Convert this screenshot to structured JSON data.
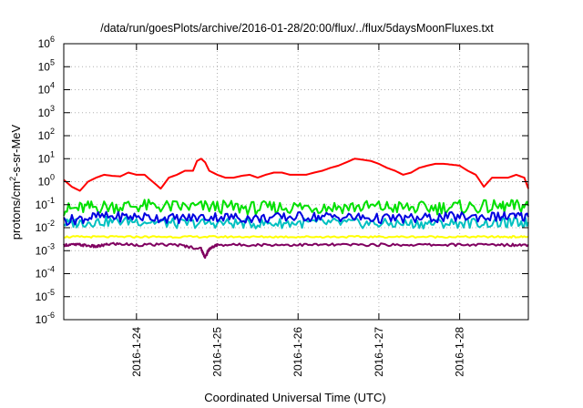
{
  "chart_data": {
    "type": "line",
    "title": "/data/run/goesPlots/archive/2016-01-28/20:00/flux/../flux/5daysMoonFluxes.txt",
    "xlabel": "Coordinated Universal Time (UTC)",
    "ylabel": "protons/cm²-s-sr-MeV",
    "ylabel_parts": {
      "pre": "protons/cm",
      "sup": "2",
      "post": "-s-sr-MeV"
    },
    "yscale": "log",
    "ylim": [
      1e-06,
      1000000.0
    ],
    "xlim_days": [
      23.1,
      28.85
    ],
    "x_ticks": [
      {
        "label": "2016-1-24",
        "day": 24
      },
      {
        "label": "2016-1-25",
        "day": 25
      },
      {
        "label": "2016-1-26",
        "day": 26
      },
      {
        "label": "2016-1-27",
        "day": 27
      },
      {
        "label": "2016-1-28",
        "day": 28
      }
    ],
    "y_ticks": [
      {
        "base": "10",
        "exp": "-6",
        "value": -6
      },
      {
        "base": "10",
        "exp": "-5",
        "value": -5
      },
      {
        "base": "10",
        "exp": "-4",
        "value": -4
      },
      {
        "base": "10",
        "exp": "-3",
        "value": -3
      },
      {
        "base": "10",
        "exp": "-2",
        "value": -2
      },
      {
        "base": "10",
        "exp": "-1",
        "value": -1
      },
      {
        "base": "10",
        "exp": "0",
        "value": 0
      },
      {
        "base": "10",
        "exp": "1",
        "value": 1
      },
      {
        "base": "10",
        "exp": "2",
        "value": 2
      },
      {
        "base": "10",
        "exp": "3",
        "value": 3
      },
      {
        "base": "10",
        "exp": "4",
        "value": 4
      },
      {
        "base": "10",
        "exp": "5",
        "value": 5
      },
      {
        "base": "10",
        "exp": "6",
        "value": 6
      }
    ],
    "grid": true,
    "legend": "none",
    "series": [
      {
        "color": "#ff0000",
        "x": [
          23.1,
          23.2,
          23.3,
          23.4,
          23.5,
          23.6,
          23.7,
          23.8,
          23.9,
          24.0,
          24.1,
          24.2,
          24.3,
          24.4,
          24.5,
          24.6,
          24.7,
          24.75,
          24.8,
          24.85,
          24.9,
          25.0,
          25.1,
          25.2,
          25.3,
          25.4,
          25.5,
          25.6,
          25.7,
          25.8,
          25.9,
          26.0,
          26.1,
          26.2,
          26.3,
          26.4,
          26.5,
          26.6,
          26.7,
          26.8,
          26.9,
          27.0,
          27.1,
          27.2,
          27.3,
          27.4,
          27.5,
          27.6,
          27.7,
          27.8,
          27.9,
          28.0,
          28.1,
          28.2,
          28.3,
          28.4,
          28.5,
          28.6,
          28.7,
          28.8,
          28.85
        ],
        "y": [
          1.2,
          0.6,
          0.4,
          1.0,
          1.5,
          2.0,
          1.8,
          1.7,
          2.5,
          2.0,
          2.0,
          1.0,
          0.5,
          1.5,
          2.0,
          3.0,
          3.0,
          8.0,
          10.0,
          7.0,
          3.0,
          2.0,
          1.5,
          1.5,
          1.8,
          2.0,
          1.5,
          2.0,
          2.5,
          2.5,
          2.0,
          2.0,
          2.0,
          2.5,
          3.0,
          4.0,
          5.0,
          7.0,
          10.0,
          9.0,
          8.0,
          6.0,
          4.0,
          3.0,
          2.0,
          2.5,
          4.0,
          5.0,
          6.0,
          6.0,
          5.5,
          5.0,
          3.0,
          2.0,
          0.6,
          1.5,
          1.5,
          1.5,
          2.0,
          1.5,
          0.5
        ]
      },
      {
        "color": "#00e000",
        "x": [
          23.1,
          23.5,
          24.0,
          24.5,
          25.0,
          25.5,
          26.0,
          26.5,
          27.0,
          27.5,
          28.0,
          28.5,
          28.85
        ],
        "y": [
          0.06,
          0.08,
          0.09,
          0.08,
          0.08,
          0.07,
          0.08,
          0.08,
          0.08,
          0.07,
          0.08,
          0.08,
          0.09
        ]
      },
      {
        "color": "#00c0c0",
        "x": [
          23.1,
          23.5,
          24.0,
          24.5,
          25.0,
          25.5,
          26.0,
          26.5,
          27.0,
          27.5,
          28.0,
          28.5,
          28.85
        ],
        "y": [
          0.015,
          0.018,
          0.02,
          0.015,
          0.016,
          0.015,
          0.016,
          0.016,
          0.015,
          0.015,
          0.016,
          0.016,
          0.017
        ]
      },
      {
        "color": "#0000e0",
        "x": [
          23.1,
          23.5,
          24.0,
          24.5,
          25.0,
          25.5,
          26.0,
          26.5,
          27.0,
          27.5,
          28.0,
          28.5,
          28.85
        ],
        "y": [
          0.02,
          0.03,
          0.03,
          0.025,
          0.03,
          0.025,
          0.03,
          0.03,
          0.025,
          0.025,
          0.03,
          0.03,
          0.03
        ]
      },
      {
        "color": "#ffff00",
        "x": [
          23.1,
          23.5,
          24.0,
          24.5,
          25.0,
          25.5,
          26.0,
          26.5,
          27.0,
          27.5,
          28.0,
          28.5,
          28.85
        ],
        "y": [
          0.004,
          0.004,
          0.004,
          0.004,
          0.004,
          0.004,
          0.004,
          0.004,
          0.004,
          0.004,
          0.004,
          0.004,
          0.004
        ]
      },
      {
        "color": "#800060",
        "x": [
          23.1,
          23.3,
          23.5,
          23.7,
          24.0,
          24.5,
          24.8,
          24.85,
          24.9,
          25.0,
          25.5,
          26.0,
          26.5,
          27.0,
          27.5,
          28.0,
          28.5,
          28.85
        ],
        "y": [
          0.0018,
          0.0018,
          0.0015,
          0.002,
          0.0018,
          0.0018,
          0.0012,
          0.0005,
          0.0012,
          0.0018,
          0.0018,
          0.0018,
          0.0018,
          0.0018,
          0.0018,
          0.0018,
          0.0018,
          0.0018
        ]
      }
    ]
  }
}
